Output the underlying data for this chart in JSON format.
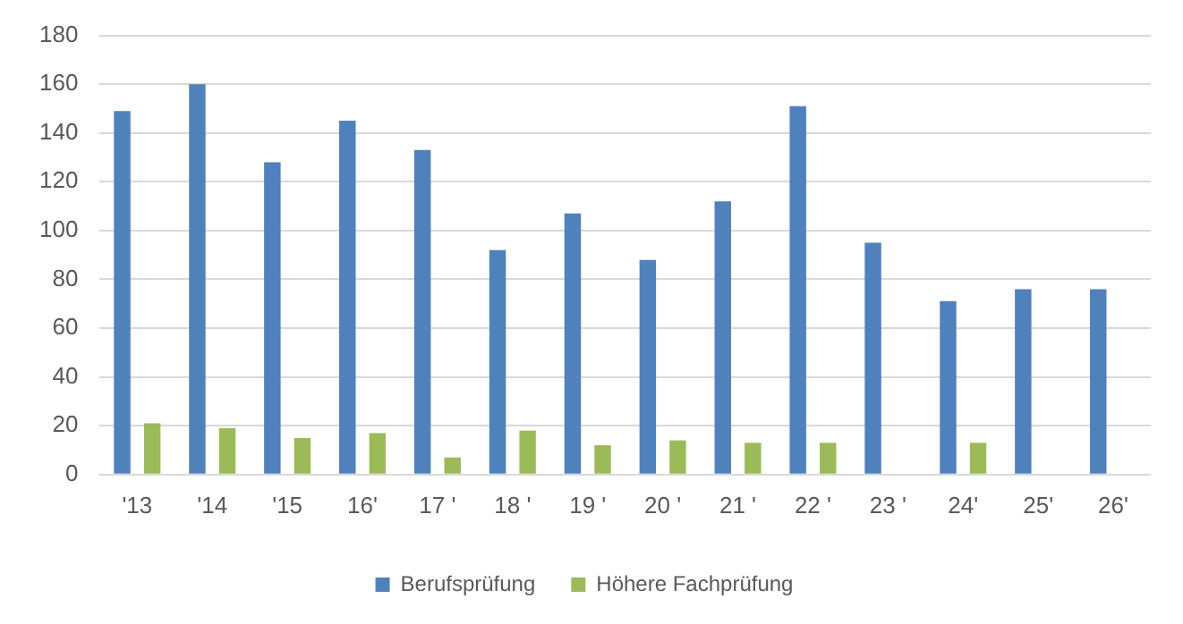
{
  "chart_data": {
    "type": "bar",
    "categories": [
      "'13",
      "'14",
      "'15",
      "16'",
      "17 '",
      "18 '",
      "19 '",
      "20 '",
      "21 '",
      "22 '",
      "23 '",
      "24'",
      "25'",
      "26'"
    ],
    "series": [
      {
        "name": "Berufsprüfung",
        "color": "#4f81bd",
        "values": [
          149,
          160,
          128,
          145,
          133,
          92,
          107,
          88,
          112,
          151,
          95,
          71,
          76,
          76
        ]
      },
      {
        "name": "Höhere Fachprüfung",
        "color": "#9bbb59",
        "values": [
          21,
          19,
          15,
          17,
          7,
          18,
          12,
          14,
          13,
          13,
          null,
          13,
          null,
          null
        ]
      }
    ],
    "ylim": [
      0,
      180
    ],
    "yticks": [
      0,
      20,
      40,
      60,
      80,
      100,
      120,
      140,
      160,
      180
    ],
    "grid": "y",
    "legend": "bottom"
  }
}
